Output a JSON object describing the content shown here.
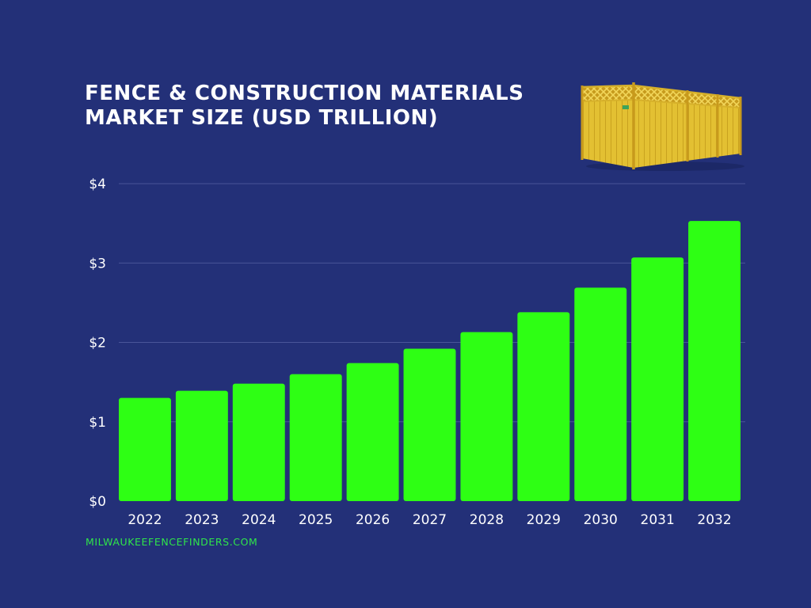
{
  "title_line1": "Fence & Construction Materials",
  "title_line2": "Market Size (USD Trillion)",
  "footer": "MILWAUKEEFENCEFINDERS.COM",
  "colors": {
    "background": "#233078",
    "bar": "#2eff14",
    "grid": "#4a5599",
    "text": "#ffffff",
    "footer": "#2fe54a",
    "fence_wood": "#e0bd2e"
  },
  "chart_data": {
    "type": "bar",
    "title": "Fence & Construction Materials Market Size (USD Trillion)",
    "categories": [
      "2022",
      "2023",
      "2024",
      "2025",
      "2026",
      "2027",
      "2028",
      "2029",
      "2030",
      "2031",
      "2032"
    ],
    "values": [
      1.3,
      1.39,
      1.48,
      1.6,
      1.74,
      1.92,
      2.13,
      2.38,
      2.69,
      3.07,
      3.53
    ],
    "yticks": [
      "$0",
      "$1",
      "$2",
      "$3",
      "$4"
    ],
    "ytick_values": [
      0,
      1,
      2,
      3,
      4
    ],
    "ylim": [
      0,
      4
    ],
    "xlabel": "",
    "ylabel": "",
    "grid": true,
    "legend": "none"
  }
}
